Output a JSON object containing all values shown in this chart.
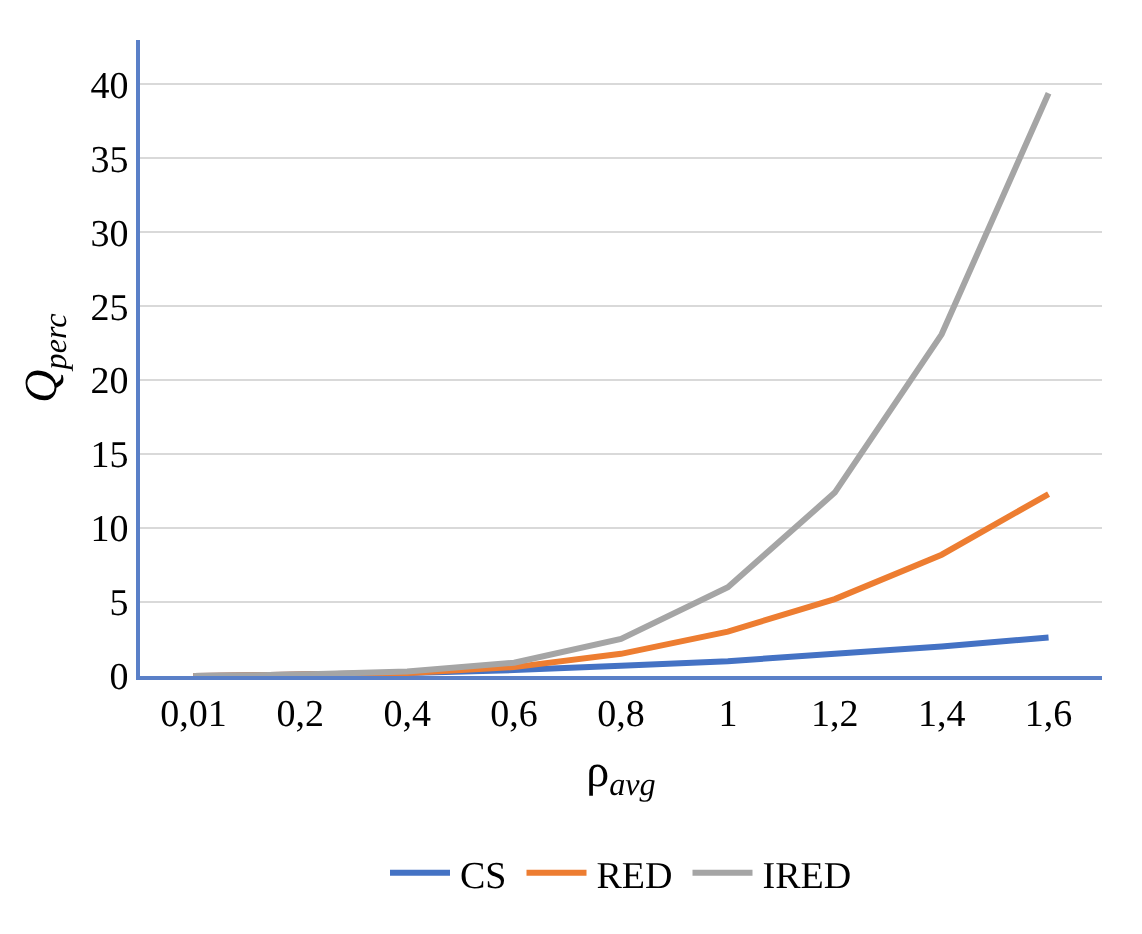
{
  "chart_data": {
    "type": "line",
    "xlabel": "ρ$_{avg}$",
    "ylabel": "Q$_{perc}$",
    "categories": [
      "0,01",
      "0,2",
      "0,4",
      "0,6",
      "0,8",
      "1",
      "1,2",
      "1,4",
      "1,6"
    ],
    "series": [
      {
        "name": "CS",
        "color": "#4472c4",
        "values": [
          0,
          0.1,
          0.2,
          0.4,
          0.7,
          1.0,
          1.5,
          2.0,
          2.6
        ]
      },
      {
        "name": "RED",
        "color": "#ed7d31",
        "values": [
          0,
          0.1,
          0.2,
          0.6,
          1.5,
          3.0,
          5.2,
          8.2,
          12.3
        ]
      },
      {
        "name": "IRED",
        "color": "#a5a5a5",
        "values": [
          0,
          0.1,
          0.3,
          0.9,
          2.5,
          6.0,
          12.4,
          23.1,
          39.4
        ]
      }
    ],
    "ylim": [
      0,
      43
    ],
    "yticks": [
      0,
      5,
      10,
      15,
      20,
      25,
      30,
      35,
      40
    ],
    "grid": "y",
    "legend": "bottom",
    "marker": "none",
    "line_style": "solid"
  }
}
